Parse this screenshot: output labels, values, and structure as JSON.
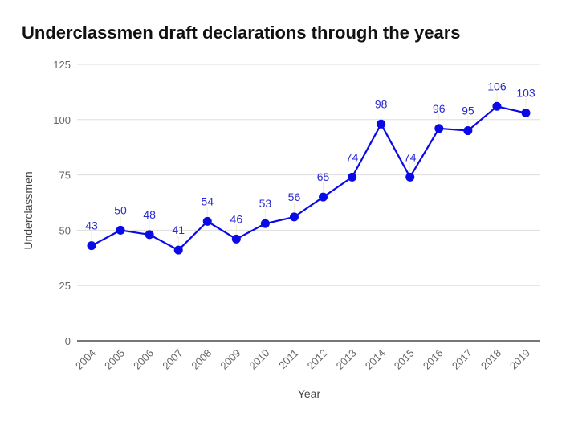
{
  "chart_data": {
    "type": "line",
    "title": "Underclassmen draft declarations through the years",
    "xlabel": "Year",
    "ylabel": "Underclassmen",
    "ylim": [
      0,
      125
    ],
    "yticks": [
      0,
      25,
      50,
      75,
      100,
      125
    ],
    "grid": true,
    "legend": "none",
    "color": "#0a0ae6",
    "categories": [
      "2004",
      "2005",
      "2006",
      "2007",
      "2008",
      "2009",
      "2010",
      "2011",
      "2012",
      "2013",
      "2014",
      "2015",
      "2016",
      "2017",
      "2018",
      "2019"
    ],
    "series": [
      {
        "name": "Underclassmen",
        "values": [
          43,
          50,
          48,
          41,
          54,
          46,
          53,
          56,
          65,
          74,
          98,
          74,
          96,
          95,
          106,
          103
        ]
      }
    ]
  }
}
